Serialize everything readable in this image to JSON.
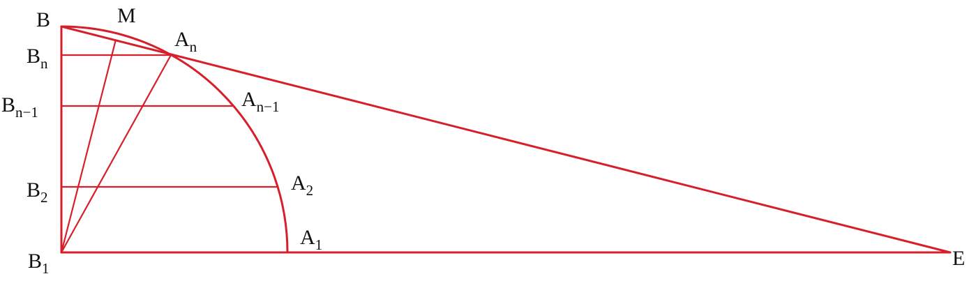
{
  "labels": {
    "B": {
      "base": "B"
    },
    "M": {
      "base": "M"
    },
    "An": {
      "base": "A",
      "sub": "n"
    },
    "Bn": {
      "base": "B",
      "sub": "n"
    },
    "Bn1": {
      "base": "B",
      "sub": "n−1"
    },
    "An1": {
      "base": "A",
      "sub": "n−1"
    },
    "B2": {
      "base": "B",
      "sub": "2"
    },
    "A2": {
      "base": "A",
      "sub": "2"
    },
    "B1": {
      "base": "B",
      "sub": "1"
    },
    "A1": {
      "base": "A",
      "sub": "1"
    },
    "E": {
      "base": "E"
    }
  }
}
